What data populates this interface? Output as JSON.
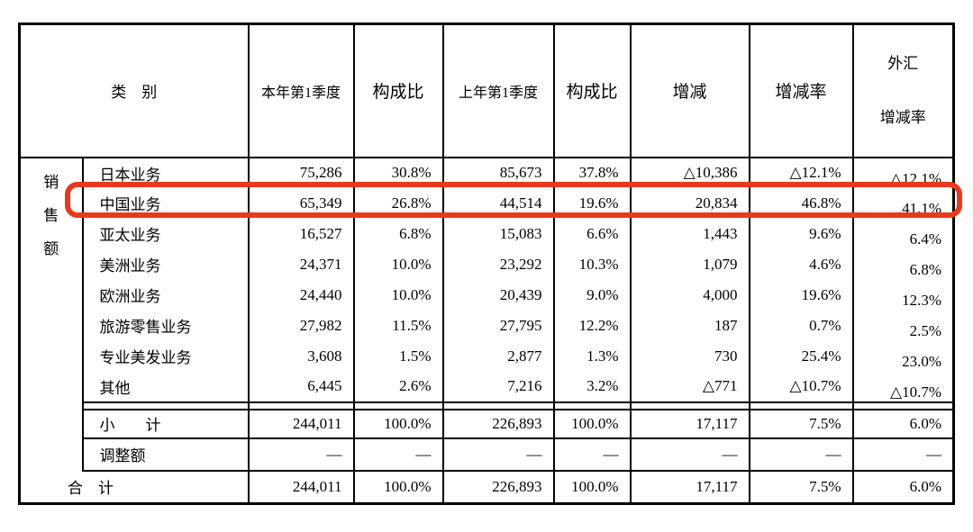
{
  "page": {
    "background": "#ffffff"
  },
  "table": {
    "row_group_label": "销售额",
    "highlight_color": "#e8391c",
    "highlighted_row_label": "中国业务",
    "headers": [
      {
        "id": "category",
        "label": "类　别"
      },
      {
        "id": "current-q1",
        "label": "本年第1季度"
      },
      {
        "id": "composition-current",
        "label": "构成比"
      },
      {
        "id": "prior-q1",
        "label": "上年第1季度"
      },
      {
        "id": "composition-prior",
        "label": "构成比"
      },
      {
        "id": "change",
        "label": "增减"
      },
      {
        "id": "change-rate",
        "label": "增减率"
      },
      {
        "id": "fx-change-rate",
        "label": "外汇\n增减率"
      }
    ],
    "rows": [
      {
        "type": "detail",
        "highlighted": false,
        "label": "日本业务",
        "values": [
          "75,286",
          "30.8%",
          "85,673",
          "37.8%",
          "△10,386",
          "△12.1%",
          "△12.1%"
        ]
      },
      {
        "type": "detail",
        "highlighted": true,
        "label": "中国业务",
        "values": [
          "65,349",
          "26.8%",
          "44,514",
          "19.6%",
          "20,834",
          "46.8%",
          "41.1%"
        ]
      },
      {
        "type": "detail",
        "highlighted": false,
        "label": "亚太业务",
        "values": [
          "16,527",
          "6.8%",
          "15,083",
          "6.6%",
          "1,443",
          "9.6%",
          "6.4%"
        ]
      },
      {
        "type": "detail",
        "highlighted": false,
        "label": "美洲业务",
        "values": [
          "24,371",
          "10.0%",
          "23,292",
          "10.3%",
          "1,079",
          "4.6%",
          "6.8%"
        ]
      },
      {
        "type": "detail",
        "highlighted": false,
        "label": "欧洲业务",
        "values": [
          "24,440",
          "10.0%",
          "20,439",
          "9.0%",
          "4,000",
          "19.6%",
          "12.3%"
        ]
      },
      {
        "type": "detail",
        "highlighted": false,
        "label": "旅游零售业务",
        "values": [
          "27,982",
          "11.5%",
          "27,795",
          "12.2%",
          "187",
          "0.7%",
          "2.5%"
        ]
      },
      {
        "type": "detail",
        "highlighted": false,
        "label": "专业美发业务",
        "values": [
          "3,608",
          "1.5%",
          "2,877",
          "1.3%",
          "730",
          "25.4%",
          "23.0%"
        ]
      },
      {
        "type": "detail",
        "highlighted": false,
        "label": "其他",
        "values": [
          "6,445",
          "2.6%",
          "7,216",
          "3.2%",
          "△771",
          "△10.7%",
          "△10.7%"
        ]
      },
      {
        "type": "subtotal",
        "highlighted": false,
        "label": "小　　计",
        "values": [
          "244,011",
          "100.0%",
          "226,893",
          "100.0%",
          "17,117",
          "7.5%",
          "6.0%"
        ]
      },
      {
        "type": "adjust",
        "highlighted": false,
        "label": "调整额",
        "values": [
          "—",
          "—",
          "—",
          "—",
          "—",
          "—",
          "—"
        ]
      },
      {
        "type": "total",
        "highlighted": false,
        "label": "合　计",
        "values": [
          "244,011",
          "100.0%",
          "226,893",
          "100.0%",
          "17,117",
          "7.5%",
          "6.0%"
        ]
      }
    ]
  }
}
